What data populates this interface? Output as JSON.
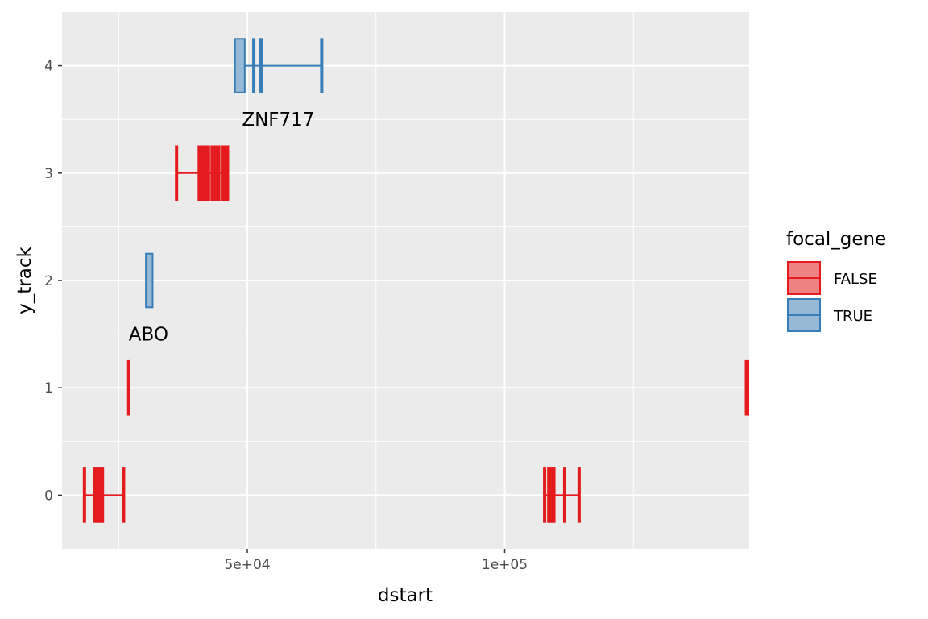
{
  "chart_data": {
    "type": "gene-track",
    "xlabel": "dstart",
    "ylabel": "y_track",
    "xlim": [
      14000,
      147500
    ],
    "ylim": [
      -0.5,
      4.5
    ],
    "x_ticks": [
      {
        "value": 50000,
        "label": "5e+04"
      },
      {
        "value": 100000,
        "label": "1e+05"
      }
    ],
    "x_minor_ticks": [
      25000,
      75000,
      125000
    ],
    "y_ticks": [
      {
        "value": 0,
        "label": "0"
      },
      {
        "value": 1,
        "label": "1"
      },
      {
        "value": 2,
        "label": "2"
      },
      {
        "value": 3,
        "label": "3"
      },
      {
        "value": 4,
        "label": "4"
      }
    ],
    "y_minor_ticks": [
      0.5,
      1.5,
      2.5,
      3.5
    ],
    "grid": true,
    "legend": {
      "title": "focal_gene",
      "position": "right",
      "entries": [
        {
          "label": "FALSE",
          "color": "#E41A1C",
          "fill": "#EE8384"
        },
        {
          "label": "TRUE",
          "color": "#377EB8",
          "fill": "#96B9D6"
        }
      ]
    },
    "genes": [
      {
        "y": 0,
        "focal": "FALSE",
        "start": 18200,
        "end": 26000,
        "exons": [
          [
            18200,
            18300
          ],
          [
            20200,
            20500
          ],
          [
            20700,
            21000
          ],
          [
            21200,
            21500
          ],
          [
            21700,
            22000
          ],
          [
            25800,
            26000
          ]
        ]
      },
      {
        "y": 0,
        "focal": "FALSE",
        "start": 107600,
        "end": 114500,
        "exons": [
          [
            107600,
            107800
          ],
          [
            108400,
            108700
          ],
          [
            108900,
            109200
          ],
          [
            109400,
            109700
          ],
          [
            111500,
            111700
          ],
          [
            114300,
            114500
          ]
        ]
      },
      {
        "y": 1,
        "focal": "FALSE",
        "start": 26800,
        "end": 27000,
        "exons": [
          [
            26800,
            27000
          ]
        ]
      },
      {
        "y": 1,
        "focal": "FALSE",
        "start": 146800,
        "end": 149000,
        "exons": [
          [
            146800,
            147000
          ],
          [
            147300,
            147500
          ],
          [
            147700,
            147900
          ]
        ]
      },
      {
        "y": 2,
        "focal": "TRUE",
        "start": 30300,
        "end": 31600,
        "exons": [
          [
            30300,
            31600
          ]
        ]
      },
      {
        "y": 3,
        "focal": "FALSE",
        "start": 36100,
        "end": 46200,
        "exons": [
          [
            36100,
            36300
          ],
          [
            40500,
            40700
          ],
          [
            41100,
            41300
          ],
          [
            41700,
            41900
          ],
          [
            42300,
            42500
          ],
          [
            43000,
            43200
          ],
          [
            43600,
            43800
          ],
          [
            44300,
            44500
          ],
          [
            45000,
            45200
          ],
          [
            45500,
            45700
          ],
          [
            46000,
            46200
          ]
        ]
      },
      {
        "y": 4,
        "focal": "TRUE",
        "start": 47600,
        "end": 64500,
        "exons": [
          [
            47600,
            49500
          ],
          [
            51100,
            51300
          ],
          [
            52500,
            52700
          ],
          [
            64300,
            64500
          ]
        ]
      }
    ],
    "annotations": [
      {
        "text": "ABO",
        "x": 30800,
        "y": 1.5
      },
      {
        "text": "ZNF717",
        "x": 56000,
        "y": 3.5
      }
    ]
  }
}
